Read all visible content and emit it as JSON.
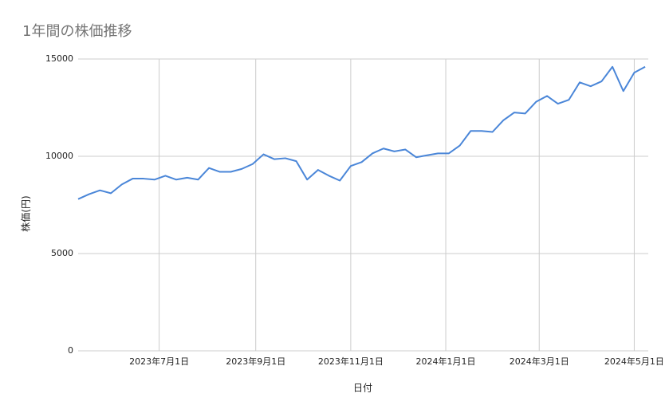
{
  "chart_data": {
    "type": "line",
    "title": "1年間の株価推移",
    "x_label": "日付",
    "y_label": "株価(円)",
    "x": [
      "2023-05-10",
      "2023-05-17",
      "2023-05-24",
      "2023-05-31",
      "2023-06-07",
      "2023-06-14",
      "2023-06-21",
      "2023-06-28",
      "2023-07-05",
      "2023-07-12",
      "2023-07-19",
      "2023-07-26",
      "2023-08-02",
      "2023-08-09",
      "2023-08-16",
      "2023-08-23",
      "2023-08-30",
      "2023-09-06",
      "2023-09-13",
      "2023-09-20",
      "2023-09-27",
      "2023-10-04",
      "2023-10-11",
      "2023-10-18",
      "2023-10-25",
      "2023-11-01",
      "2023-11-08",
      "2023-11-15",
      "2023-11-22",
      "2023-11-29",
      "2023-12-06",
      "2023-12-13",
      "2023-12-20",
      "2023-12-27",
      "2024-01-03",
      "2024-01-10",
      "2024-01-17",
      "2024-01-24",
      "2024-01-31",
      "2024-02-07",
      "2024-02-14",
      "2024-02-21",
      "2024-02-28",
      "2024-03-06",
      "2024-03-13",
      "2024-03-20",
      "2024-03-27",
      "2024-04-03",
      "2024-04-10",
      "2024-04-17",
      "2024-04-24",
      "2024-05-01",
      "2024-05-08"
    ],
    "series": [
      {
        "name": "株価",
        "color": "#4a86d8",
        "values": [
          7800,
          8050,
          8250,
          8100,
          8550,
          8850,
          8850,
          8800,
          9000,
          8800,
          8900,
          8800,
          9400,
          9200,
          9200,
          9350,
          9600,
          10100,
          9850,
          9900,
          9750,
          8800,
          9300,
          9000,
          8750,
          9500,
          9700,
          10150,
          10400,
          10250,
          10350,
          9950,
          10050,
          10150,
          10150,
          10550,
          11300,
          11300,
          11250,
          11850,
          12250,
          12200,
          12800,
          13100,
          12700,
          12900,
          13800,
          13600,
          13850,
          14600,
          13350,
          14300,
          14600
        ]
      }
    ],
    "xlim": [
      "2023-05-10",
      "2024-05-10"
    ],
    "xticks": [
      {
        "value": "2023-07-01",
        "label": "2023年7月1日"
      },
      {
        "value": "2023-09-01",
        "label": "2023年9月1日"
      },
      {
        "value": "2023-11-01",
        "label": "2023年11月1日"
      },
      {
        "value": "2024-01-01",
        "label": "2024年1月1日"
      },
      {
        "value": "2024-03-01",
        "label": "2024年3月1日"
      },
      {
        "value": "2024-05-01",
        "label": "2024年5月1日"
      }
    ],
    "ylim": [
      0,
      15000
    ],
    "yticks": [
      0,
      5000,
      10000,
      15000
    ],
    "grid": true
  }
}
